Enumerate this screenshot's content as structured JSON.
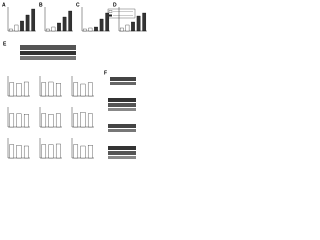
{
  "top_panels": [
    {
      "label": "A",
      "values": [
        1,
        3,
        5,
        8,
        11
      ],
      "ylim": [
        0,
        12
      ]
    },
    {
      "label": "B",
      "values": [
        1,
        2,
        4,
        7,
        10
      ],
      "ylim": [
        0,
        12
      ]
    },
    {
      "label": "C",
      "values": [
        1,
        1.5,
        2,
        6,
        9
      ],
      "ylim": [
        0,
        12
      ]
    },
    {
      "label": "D",
      "values": [
        1,
        2,
        3,
        5,
        6
      ],
      "ylim": [
        0,
        8
      ]
    }
  ],
  "blot_labels": {
    "e": "E",
    "f": "F"
  },
  "small_charts": [
    {
      "values": [
        1,
        0.95,
        1.05
      ],
      "ylim": [
        0,
        1.5
      ]
    },
    {
      "values": [
        1,
        1.05,
        0.95
      ],
      "ylim": [
        0,
        1.5
      ]
    },
    {
      "values": [
        1,
        0.9,
        1.0
      ],
      "ylim": [
        0,
        1.5
      ]
    },
    {
      "values": [
        1,
        1.0,
        0.95
      ],
      "ylim": [
        0,
        1.5
      ]
    },
    {
      "values": [
        1,
        0.95,
        1.0
      ],
      "ylim": [
        0,
        1.5
      ]
    },
    {
      "values": [
        1,
        1.1,
        1.0
      ],
      "ylim": [
        0,
        1.5
      ]
    },
    {
      "values": [
        1,
        0.95,
        0.9
      ],
      "ylim": [
        0,
        1.5
      ]
    },
    {
      "values": [
        1,
        1.0,
        1.05
      ],
      "ylim": [
        0,
        1.5
      ]
    },
    {
      "values": [
        1,
        0.9,
        0.95
      ],
      "ylim": [
        0,
        1.5
      ]
    }
  ]
}
